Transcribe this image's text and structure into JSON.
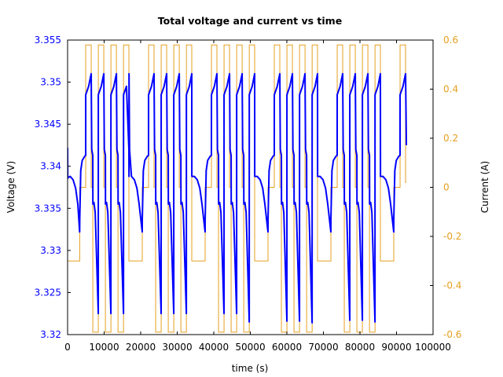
{
  "chart_data": {
    "type": "line",
    "title": "Total voltage and current vs time",
    "xlabel": "time (s)",
    "ylabel": "Voltage (V)",
    "y2label": "Current (A)",
    "xlim": [
      0,
      100000
    ],
    "ylim": [
      3.32,
      3.355
    ],
    "y2lim": [
      -0.6,
      0.6
    ],
    "grid": false,
    "legend": null,
    "x_ticks": [
      "0",
      "10000",
      "20000",
      "30000",
      "40000",
      "50000",
      "60000",
      "70000",
      "80000",
      "90000",
      "100000"
    ],
    "y_ticks": [
      "3.32",
      "3.325",
      "3.33",
      "3.335",
      "3.34",
      "3.345",
      "3.35",
      "3.355"
    ],
    "y2_ticks": [
      "-0.6",
      "-0.4",
      "-0.2",
      "0",
      "0.2",
      "0.4",
      "0.6"
    ],
    "colors": {
      "voltage": "#0000ff",
      "current": "#e6a020",
      "axes": "#000000"
    },
    "series": [
      {
        "name": "Voltage (V)",
        "axis": "left",
        "points": [
          [
            0,
            3.3422
          ],
          [
            40,
            3.3386
          ],
          [
            700,
            3.3388
          ],
          [
            1500,
            3.3384
          ],
          [
            2200,
            3.3374
          ],
          [
            2800,
            3.3355
          ],
          [
            3300,
            3.3322
          ],
          [
            3320,
            3.3336
          ],
          [
            3600,
            3.3395
          ],
          [
            4000,
            3.3407
          ],
          [
            4700,
            3.3412
          ],
          [
            4950,
            3.3413
          ],
          [
            4960,
            3.3485
          ],
          [
            5760,
            3.3495
          ],
          [
            6460,
            3.351
          ],
          [
            6600,
            3.342
          ],
          [
            6895,
            3.3413
          ],
          [
            6920,
            3.3355
          ],
          [
            7210,
            3.3357
          ],
          [
            7560,
            3.3345
          ],
          [
            8400,
            3.3225
          ],
          [
            8410,
            3.3485
          ],
          [
            9210,
            3.3495
          ],
          [
            9910,
            3.351
          ],
          [
            10050,
            3.342
          ],
          [
            10345,
            3.3413
          ],
          [
            10370,
            3.3355
          ],
          [
            10660,
            3.3357
          ],
          [
            11010,
            3.3345
          ],
          [
            11850,
            3.3225
          ],
          [
            11860,
            3.3485
          ],
          [
            12660,
            3.3495
          ],
          [
            13360,
            3.351
          ],
          [
            13500,
            3.342
          ],
          [
            13795,
            3.3413
          ],
          [
            13820,
            3.3355
          ],
          [
            14110,
            3.3357
          ],
          [
            14460,
            3.3345
          ],
          [
            15300,
            3.3225
          ],
          [
            15310,
            3.3485
          ],
          [
            16110,
            3.3495
          ],
          [
            16810,
            3.351
          ],
          [
            16950,
            3.342
          ],
          [
            16774,
            3.342
          ],
          [
            16800,
            3.3388
          ],
          [
            17474,
            3.3388
          ],
          [
            18274,
            3.3384
          ],
          [
            18974,
            3.3374
          ],
          [
            19574,
            3.3355
          ],
          [
            20424,
            3.3322
          ],
          [
            20434,
            3.3336
          ],
          [
            20724,
            3.3395
          ],
          [
            21124,
            3.3407
          ],
          [
            21824,
            3.3412
          ],
          [
            22149,
            3.3413
          ],
          [
            22159,
            3.3485
          ],
          [
            22959,
            3.3495
          ],
          [
            23659,
            3.351
          ],
          [
            23799,
            3.342
          ],
          [
            24094,
            3.3413
          ],
          [
            24119,
            3.3355
          ],
          [
            24409,
            3.3357
          ],
          [
            24759,
            3.3345
          ],
          [
            25599,
            3.3225
          ],
          [
            25609,
            3.3485
          ],
          [
            26409,
            3.3495
          ],
          [
            27109,
            3.351
          ],
          [
            27249,
            3.342
          ],
          [
            27544,
            3.3413
          ],
          [
            27569,
            3.3355
          ],
          [
            27859,
            3.3357
          ],
          [
            28209,
            3.3345
          ],
          [
            29049,
            3.3225
          ],
          [
            29059,
            3.3485
          ],
          [
            29859,
            3.3495
          ],
          [
            30559,
            3.351
          ],
          [
            30699,
            3.342
          ],
          [
            30994,
            3.3413
          ],
          [
            31019,
            3.3355
          ],
          [
            31309,
            3.3357
          ],
          [
            31659,
            3.3345
          ],
          [
            32499,
            3.3225
          ],
          [
            32509,
            3.3485
          ],
          [
            33309,
            3.3495
          ],
          [
            33978,
            3.351
          ],
          [
            34000,
            3.3388
          ],
          [
            34678,
            3.3388
          ],
          [
            35478,
            3.3384
          ],
          [
            36178,
            3.3374
          ],
          [
            36778,
            3.3355
          ],
          [
            37628,
            3.3322
          ],
          [
            37638,
            3.3336
          ],
          [
            37928,
            3.3395
          ],
          [
            38328,
            3.3407
          ],
          [
            39028,
            3.3412
          ],
          [
            39353,
            3.3413
          ],
          [
            39363,
            3.3485
          ],
          [
            40163,
            3.3495
          ],
          [
            40863,
            3.351
          ],
          [
            41003,
            3.342
          ],
          [
            41298,
            3.3413
          ],
          [
            41323,
            3.3355
          ],
          [
            41613,
            3.3357
          ],
          [
            41963,
            3.3345
          ],
          [
            42803,
            3.3225
          ],
          [
            42813,
            3.3485
          ],
          [
            43613,
            3.3495
          ],
          [
            44313,
            3.351
          ],
          [
            44453,
            3.342
          ],
          [
            44748,
            3.3413
          ],
          [
            44773,
            3.3355
          ],
          [
            45063,
            3.3357
          ],
          [
            45413,
            3.3345
          ],
          [
            46253,
            3.3225
          ],
          [
            46263,
            3.3485
          ],
          [
            47063,
            3.3495
          ],
          [
            47763,
            3.351
          ],
          [
            47903,
            3.342
          ],
          [
            48198,
            3.3413
          ],
          [
            48223,
            3.3355
          ],
          [
            48513,
            3.3357
          ],
          [
            48863,
            3.3345
          ],
          [
            49703,
            3.3215
          ],
          [
            49713,
            3.3485
          ],
          [
            50513,
            3.3495
          ],
          [
            51183,
            3.351
          ],
          [
            51205,
            3.3388
          ],
          [
            51883,
            3.3388
          ],
          [
            52683,
            3.3384
          ],
          [
            53383,
            3.3374
          ],
          [
            53983,
            3.3355
          ],
          [
            54833,
            3.3322
          ],
          [
            54843,
            3.3336
          ],
          [
            55133,
            3.3395
          ],
          [
            55533,
            3.3407
          ],
          [
            56233,
            3.3412
          ],
          [
            56558,
            3.3413
          ],
          [
            56568,
            3.3485
          ],
          [
            57368,
            3.3495
          ],
          [
            58068,
            3.351
          ],
          [
            58208,
            3.342
          ],
          [
            58503,
            3.3413
          ],
          [
            58528,
            3.3355
          ],
          [
            58818,
            3.3357
          ],
          [
            59168,
            3.3345
          ],
          [
            60008,
            3.3216
          ],
          [
            60018,
            3.3485
          ],
          [
            60818,
            3.3495
          ],
          [
            61518,
            3.351
          ],
          [
            61658,
            3.342
          ],
          [
            61953,
            3.3413
          ],
          [
            61978,
            3.3355
          ],
          [
            62268,
            3.3357
          ],
          [
            62618,
            3.3345
          ],
          [
            63458,
            3.3216
          ],
          [
            63468,
            3.3485
          ],
          [
            64268,
            3.3495
          ],
          [
            64968,
            3.351
          ],
          [
            65108,
            3.342
          ],
          [
            65403,
            3.3413
          ],
          [
            65428,
            3.3355
          ],
          [
            65718,
            3.3357
          ],
          [
            66068,
            3.3345
          ],
          [
            66908,
            3.3214
          ],
          [
            66918,
            3.3485
          ],
          [
            67718,
            3.3495
          ],
          [
            68387,
            3.351
          ],
          [
            68410,
            3.3388
          ],
          [
            69087,
            3.3388
          ],
          [
            69887,
            3.3384
          ],
          [
            70587,
            3.3374
          ],
          [
            71187,
            3.3355
          ],
          [
            72037,
            3.3322
          ],
          [
            72047,
            3.3336
          ],
          [
            72337,
            3.3395
          ],
          [
            72737,
            3.3407
          ],
          [
            73437,
            3.3412
          ],
          [
            73762,
            3.3413
          ],
          [
            73772,
            3.3485
          ],
          [
            74572,
            3.3495
          ],
          [
            75272,
            3.351
          ],
          [
            75412,
            3.342
          ],
          [
            75707,
            3.3413
          ],
          [
            75732,
            3.3355
          ],
          [
            76022,
            3.3357
          ],
          [
            76372,
            3.3345
          ],
          [
            77212,
            3.3217
          ],
          [
            77222,
            3.3485
          ],
          [
            78022,
            3.3495
          ],
          [
            78722,
            3.351
          ],
          [
            78862,
            3.342
          ],
          [
            79157,
            3.3413
          ],
          [
            79182,
            3.3355
          ],
          [
            79472,
            3.3357
          ],
          [
            79822,
            3.3345
          ],
          [
            80662,
            3.3217
          ],
          [
            80672,
            3.3485
          ],
          [
            81472,
            3.3495
          ],
          [
            82172,
            3.351
          ],
          [
            82312,
            3.342
          ],
          [
            82607,
            3.3413
          ],
          [
            82632,
            3.3355
          ],
          [
            82922,
            3.3357
          ],
          [
            83272,
            3.3345
          ],
          [
            84112,
            3.3215
          ],
          [
            84122,
            3.3485
          ],
          [
            84922,
            3.3495
          ],
          [
            85591,
            3.351
          ],
          [
            85615,
            3.3388
          ],
          [
            86291,
            3.3388
          ],
          [
            87091,
            3.3384
          ],
          [
            87791,
            3.3374
          ],
          [
            88391,
            3.3355
          ],
          [
            89241,
            3.3322
          ],
          [
            89251,
            3.3336
          ],
          [
            89541,
            3.3395
          ],
          [
            89941,
            3.3407
          ],
          [
            90641,
            3.3412
          ],
          [
            90966,
            3.3413
          ],
          [
            90976,
            3.3485
          ],
          [
            91776,
            3.3495
          ],
          [
            92476,
            3.351
          ],
          [
            92700,
            3.3425
          ]
        ]
      },
      {
        "name": "Current (A)",
        "axis": "right",
        "steps": [
          [
            0,
            -0.3
          ],
          [
            3320,
            0
          ],
          [
            4960,
            0.58
          ],
          [
            6460,
            0
          ],
          [
            6895,
            -0.59
          ],
          [
            8410,
            0.58
          ],
          [
            9910,
            0
          ],
          [
            10345,
            -0.59
          ],
          [
            11860,
            0.58
          ],
          [
            13360,
            0
          ],
          [
            13795,
            -0.59
          ],
          [
            15310,
            0.58
          ],
          [
            16774,
            -0.3
          ],
          [
            20434,
            0
          ],
          [
            22159,
            0.58
          ],
          [
            23659,
            0
          ],
          [
            24094,
            -0.59
          ],
          [
            25609,
            0.58
          ],
          [
            27109,
            0
          ],
          [
            27544,
            -0.59
          ],
          [
            29059,
            0.58
          ],
          [
            30559,
            0
          ],
          [
            30994,
            -0.59
          ],
          [
            32509,
            0.58
          ],
          [
            33978,
            -0.3
          ],
          [
            37638,
            0
          ],
          [
            39363,
            0.58
          ],
          [
            40863,
            0
          ],
          [
            41298,
            -0.59
          ],
          [
            42813,
            0.58
          ],
          [
            44313,
            0
          ],
          [
            44748,
            -0.59
          ],
          [
            46263,
            0.58
          ],
          [
            47763,
            0
          ],
          [
            48198,
            -0.59
          ],
          [
            49713,
            0.58
          ],
          [
            51183,
            -0.3
          ],
          [
            54843,
            0
          ],
          [
            56568,
            0.58
          ],
          [
            58068,
            0
          ],
          [
            58503,
            -0.59
          ],
          [
            60018,
            0.58
          ],
          [
            61518,
            0
          ],
          [
            61953,
            -0.59
          ],
          [
            63468,
            0.58
          ],
          [
            64968,
            0
          ],
          [
            65403,
            -0.59
          ],
          [
            66918,
            0.58
          ],
          [
            68387,
            -0.3
          ],
          [
            72047,
            0
          ],
          [
            73772,
            0.58
          ],
          [
            75272,
            0
          ],
          [
            75707,
            -0.59
          ],
          [
            77222,
            0.58
          ],
          [
            78722,
            0
          ],
          [
            79157,
            -0.59
          ],
          [
            80672,
            0.58
          ],
          [
            82172,
            0
          ],
          [
            82607,
            -0.59
          ],
          [
            84122,
            0.58
          ],
          [
            85591,
            -0.3
          ],
          [
            89251,
            0
          ],
          [
            90976,
            0.58
          ],
          [
            92476,
            0.02
          ],
          [
            92700,
            0.02
          ]
        ]
      }
    ]
  }
}
